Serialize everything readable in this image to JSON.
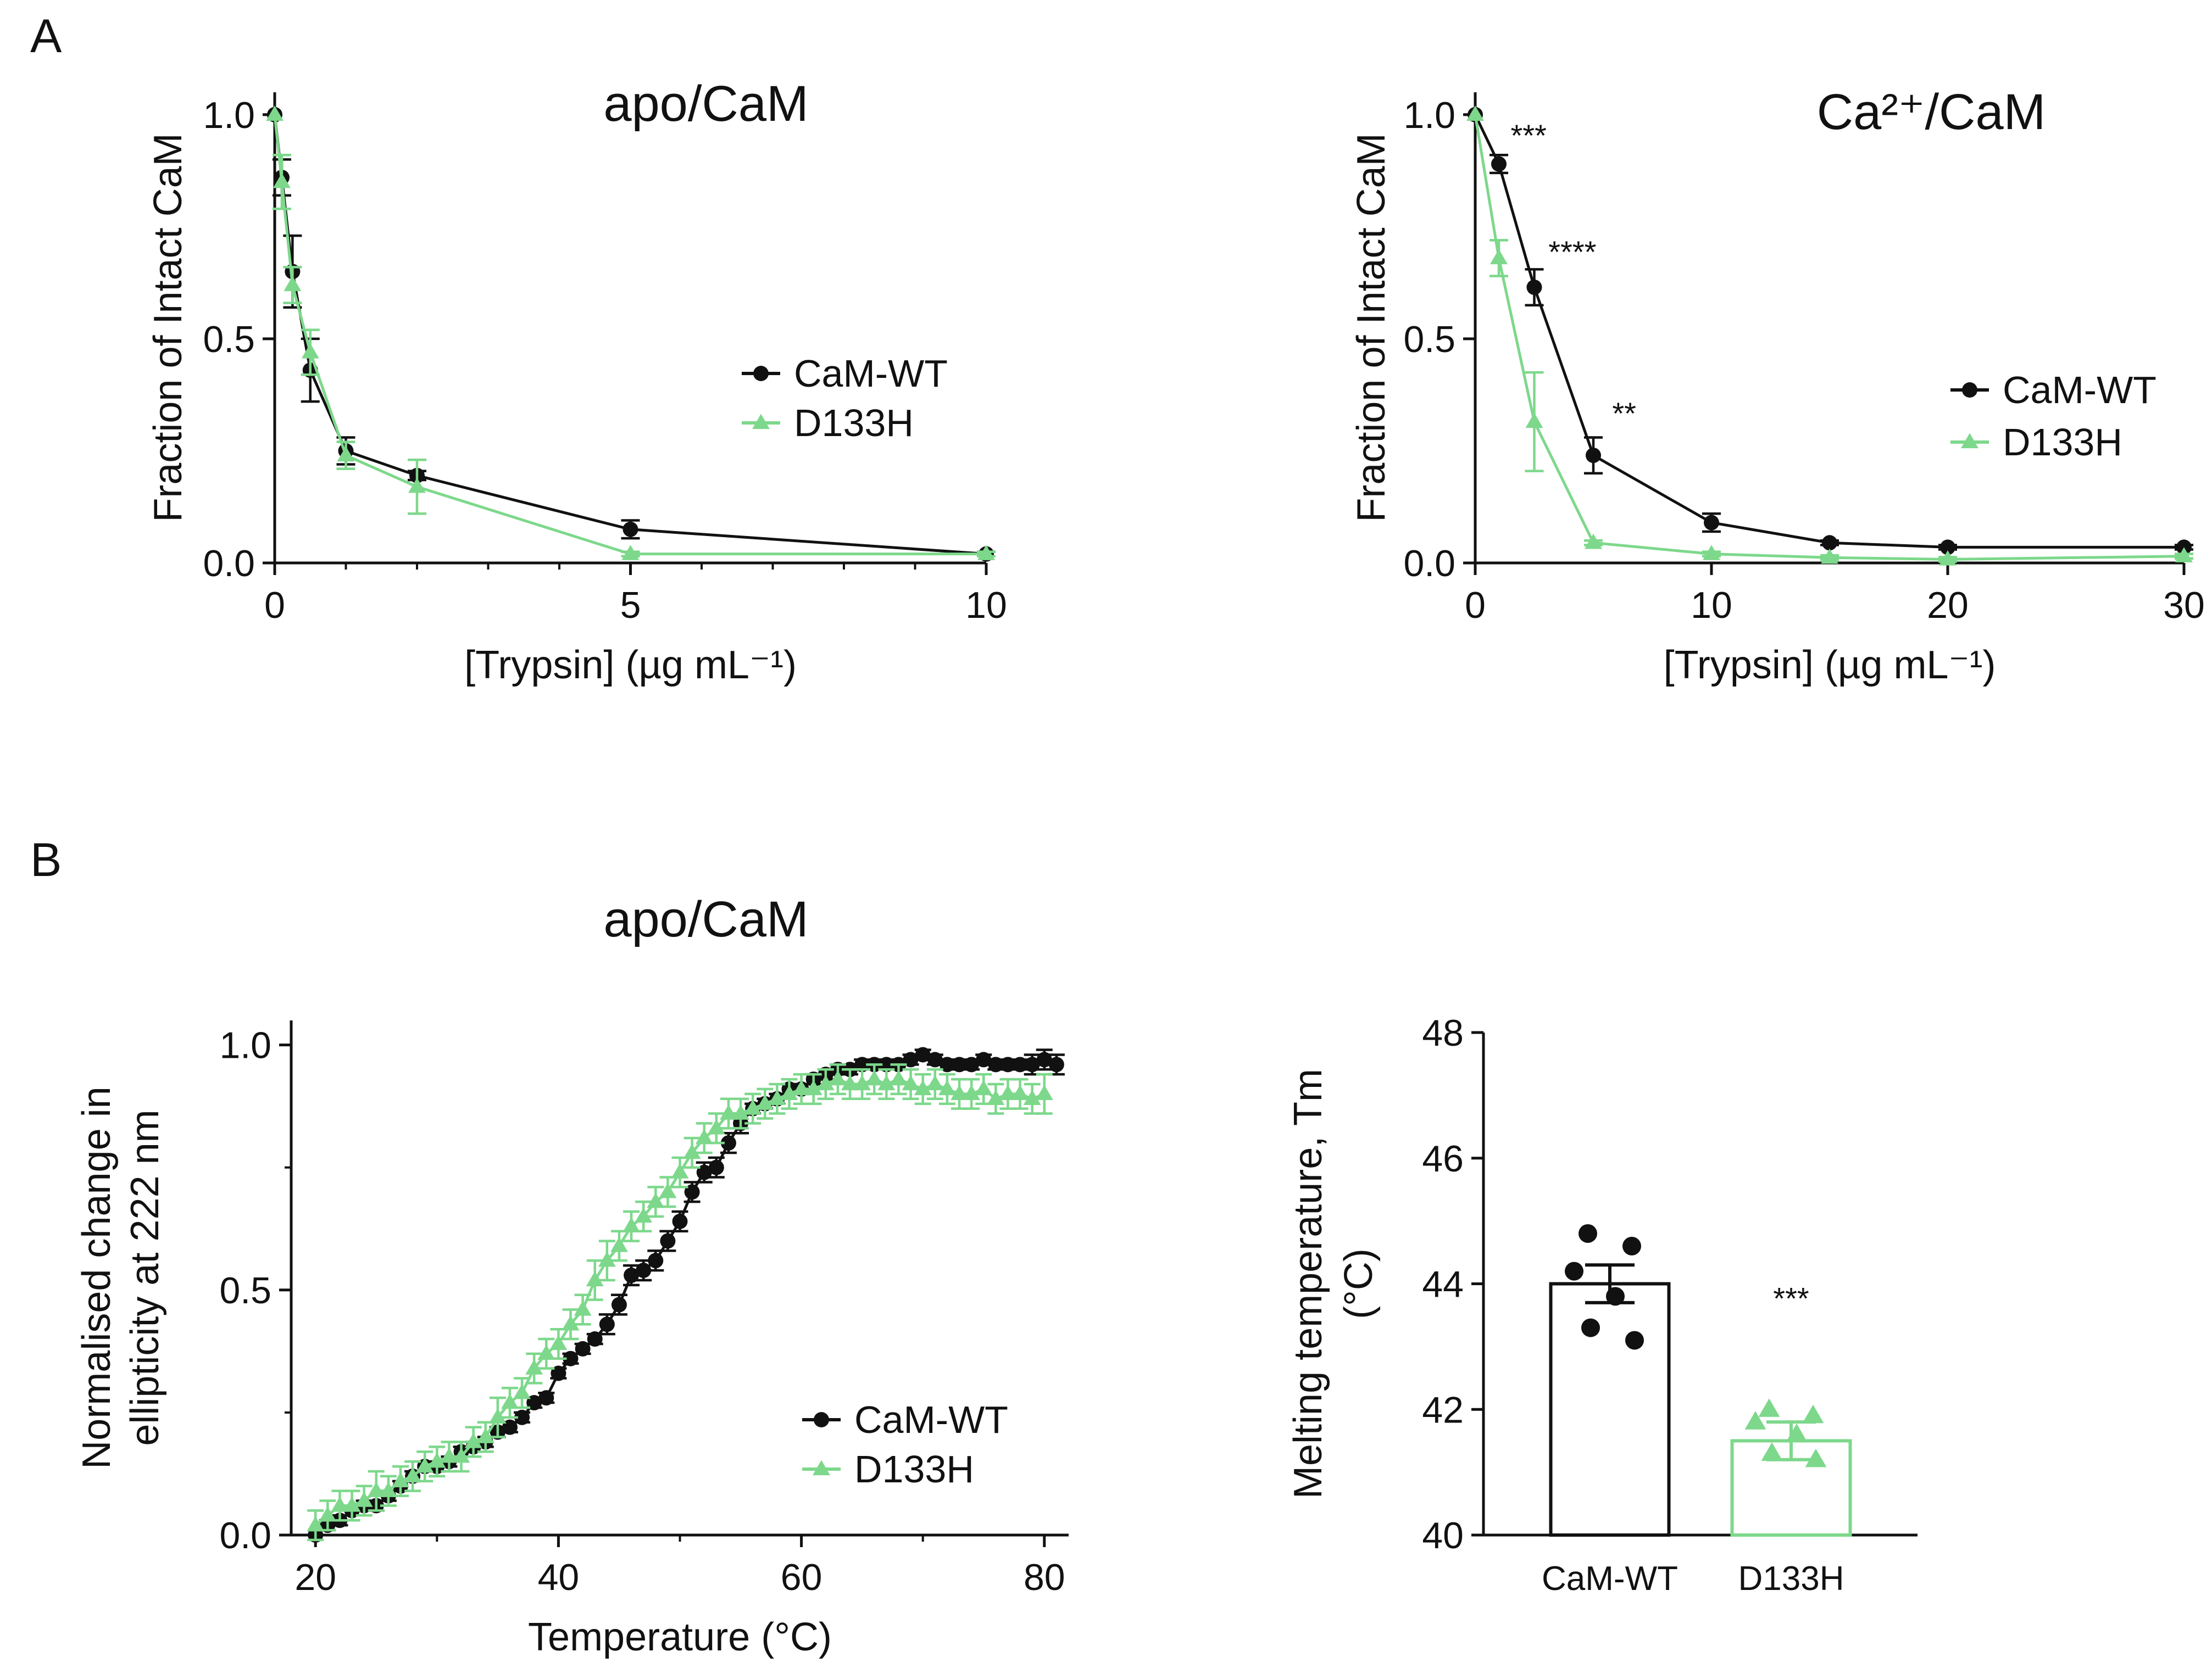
{
  "colors": {
    "wt": "#111111",
    "mut": "#7dd88b"
  },
  "panel_labels": [
    "A",
    "B"
  ],
  "chart_data": [
    {
      "id": "a_left",
      "type": "line",
      "title": "apo/CaM",
      "xlabel": "[Trypsin] (µg mL⁻¹)",
      "ylabel": "Fraction of Intact CaM",
      "xlim": [
        0,
        10
      ],
      "ylim": [
        0,
        1.05
      ],
      "xticks": [
        0,
        5,
        10
      ],
      "yticks": [
        0,
        0.5,
        1.0
      ],
      "ytick_labels": [
        "0.0",
        "0.5",
        "1.0"
      ],
      "legend": "right",
      "series": [
        {
          "name": "CaM-WT",
          "marker": "circle",
          "x": [
            0,
            0.1,
            0.25,
            0.5,
            1,
            2,
            5,
            10
          ],
          "y": [
            1.0,
            0.86,
            0.65,
            0.43,
            0.25,
            0.195,
            0.075,
            0.02
          ],
          "err": [
            0,
            0.04,
            0.08,
            0.07,
            0.03,
            0.01,
            0.02,
            0.005
          ]
        },
        {
          "name": "D133H",
          "marker": "triangle",
          "x": [
            0,
            0.1,
            0.25,
            0.5,
            1,
            2,
            5,
            10
          ],
          "y": [
            1.0,
            0.85,
            0.62,
            0.47,
            0.24,
            0.17,
            0.02,
            0.02
          ],
          "err": [
            0,
            0.06,
            0.04,
            0.05,
            0.03,
            0.06,
            0.005,
            0.005
          ]
        }
      ],
      "annotations": []
    },
    {
      "id": "a_right",
      "type": "line",
      "title": "Ca²⁺/CaM",
      "xlabel": "[Trypsin] (µg mL⁻¹)",
      "ylabel": "Fraction of Intact CaM",
      "xlim": [
        0,
        30
      ],
      "ylim": [
        0,
        1.05
      ],
      "xticks": [
        0,
        10,
        20,
        30
      ],
      "yticks": [
        0,
        0.5,
        1.0
      ],
      "ytick_labels": [
        "0.0",
        "0.5",
        "1.0"
      ],
      "legend": "right",
      "series": [
        {
          "name": "CaM-WT",
          "marker": "circle",
          "x": [
            0,
            1,
            2.5,
            5,
            10,
            15,
            20,
            30
          ],
          "y": [
            1.0,
            0.89,
            0.615,
            0.24,
            0.09,
            0.045,
            0.035,
            0.035
          ],
          "err": [
            0,
            0.02,
            0.04,
            0.04,
            0.02,
            0.005,
            0.005,
            0.005
          ]
        },
        {
          "name": "D133H",
          "marker": "triangle",
          "x": [
            0,
            1,
            2.5,
            5,
            10,
            15,
            20,
            30
          ],
          "y": [
            1.0,
            0.68,
            0.315,
            0.045,
            0.02,
            0.012,
            0.008,
            0.015
          ],
          "err": [
            0,
            0.04,
            0.11,
            0.005,
            0.005,
            0.005,
            0.005,
            0.005
          ]
        }
      ],
      "annotations": [
        {
          "text": "***",
          "x": 1.5,
          "y": 0.93
        },
        {
          "text": "****",
          "x": 3.1,
          "y": 0.67
        },
        {
          "text": "**",
          "x": 5.8,
          "y": 0.31
        }
      ]
    },
    {
      "id": "b_left",
      "type": "scatter",
      "title": "apo/CaM",
      "xlabel": "Temperature (°C)",
      "ylabel": "Normalised change in ellipticity at 222 nm",
      "ylabel_lines": [
        "Normalised change in",
        "ellipticity at 222 nm"
      ],
      "xlim": [
        18,
        82
      ],
      "ylim": [
        0,
        1.05
      ],
      "xticks": [
        20,
        40,
        60,
        80
      ],
      "yticks": [
        0,
        0.5,
        1.0
      ],
      "ytick_labels": [
        "0.0",
        "0.5",
        "1.0"
      ],
      "legend": "bottom-right",
      "series": [
        {
          "name": "CaM-WT",
          "marker": "circle",
          "x": [
            20,
            21,
            22,
            23,
            24,
            25,
            26,
            27,
            28,
            29,
            30,
            31,
            32,
            33,
            34,
            35,
            36,
            37,
            38,
            39,
            40,
            41,
            42,
            43,
            44,
            45,
            46,
            47,
            48,
            49,
            50,
            51,
            52,
            53,
            54,
            55,
            56,
            57,
            58,
            59,
            60,
            61,
            62,
            63,
            64,
            65,
            66,
            67,
            68,
            69,
            70,
            71,
            72,
            73,
            74,
            75,
            76,
            77,
            78,
            79,
            80,
            81
          ],
          "y": [
            0.0,
            0.02,
            0.03,
            0.05,
            0.06,
            0.06,
            0.08,
            0.1,
            0.12,
            0.14,
            0.14,
            0.15,
            0.17,
            0.18,
            0.19,
            0.21,
            0.22,
            0.24,
            0.27,
            0.28,
            0.33,
            0.36,
            0.38,
            0.4,
            0.43,
            0.47,
            0.53,
            0.54,
            0.56,
            0.6,
            0.64,
            0.7,
            0.74,
            0.75,
            0.8,
            0.84,
            0.87,
            0.88,
            0.89,
            0.91,
            0.91,
            0.93,
            0.94,
            0.95,
            0.95,
            0.96,
            0.96,
            0.96,
            0.96,
            0.97,
            0.98,
            0.97,
            0.96,
            0.96,
            0.96,
            0.97,
            0.96,
            0.96,
            0.96,
            0.96,
            0.97,
            0.96
          ],
          "err": [
            0,
            0.01,
            0.01,
            0.01,
            0.01,
            0.01,
            0.01,
            0.01,
            0.01,
            0.01,
            0.01,
            0.01,
            0.01,
            0.01,
            0.01,
            0.01,
            0.01,
            0.01,
            0.01,
            0.01,
            0.01,
            0.01,
            0.01,
            0.01,
            0.02,
            0.02,
            0.02,
            0.02,
            0.02,
            0.02,
            0.02,
            0.02,
            0.02,
            0.02,
            0.02,
            0.02,
            0.01,
            0.01,
            0.01,
            0.01,
            0.01,
            0.01,
            0.01,
            0.01,
            0.01,
            0.01,
            0.01,
            0.01,
            0.01,
            0.01,
            0.01,
            0.01,
            0.01,
            0.01,
            0.01,
            0.01,
            0.01,
            0.01,
            0.01,
            0.02,
            0.02,
            0.02
          ]
        },
        {
          "name": "D133H",
          "marker": "triangle",
          "x": [
            20,
            21,
            22,
            23,
            24,
            25,
            26,
            27,
            28,
            29,
            30,
            31,
            32,
            33,
            34,
            35,
            36,
            37,
            38,
            39,
            40,
            41,
            42,
            43,
            44,
            45,
            46,
            47,
            48,
            49,
            50,
            51,
            52,
            53,
            54,
            55,
            56,
            57,
            58,
            59,
            60,
            61,
            62,
            63,
            64,
            65,
            66,
            67,
            68,
            69,
            70,
            71,
            72,
            73,
            74,
            75,
            76,
            77,
            78,
            79,
            80
          ],
          "y": [
            0.02,
            0.04,
            0.06,
            0.06,
            0.07,
            0.09,
            0.09,
            0.11,
            0.12,
            0.14,
            0.15,
            0.16,
            0.16,
            0.19,
            0.2,
            0.24,
            0.27,
            0.29,
            0.34,
            0.37,
            0.39,
            0.43,
            0.46,
            0.52,
            0.56,
            0.59,
            0.63,
            0.65,
            0.68,
            0.7,
            0.74,
            0.78,
            0.81,
            0.83,
            0.86,
            0.86,
            0.87,
            0.88,
            0.89,
            0.9,
            0.91,
            0.91,
            0.92,
            0.93,
            0.92,
            0.92,
            0.93,
            0.92,
            0.93,
            0.92,
            0.91,
            0.92,
            0.91,
            0.9,
            0.9,
            0.91,
            0.89,
            0.9,
            0.9,
            0.89,
            0.9
          ],
          "err": [
            0.03,
            0.03,
            0.03,
            0.03,
            0.03,
            0.04,
            0.03,
            0.03,
            0.03,
            0.03,
            0.03,
            0.03,
            0.03,
            0.03,
            0.03,
            0.04,
            0.03,
            0.03,
            0.03,
            0.03,
            0.03,
            0.03,
            0.03,
            0.04,
            0.04,
            0.03,
            0.03,
            0.03,
            0.03,
            0.03,
            0.03,
            0.03,
            0.03,
            0.03,
            0.03,
            0.03,
            0.03,
            0.03,
            0.03,
            0.03,
            0.03,
            0.03,
            0.03,
            0.03,
            0.03,
            0.03,
            0.03,
            0.03,
            0.03,
            0.03,
            0.03,
            0.03,
            0.03,
            0.03,
            0.03,
            0.03,
            0.03,
            0.03,
            0.03,
            0.03,
            0.04
          ]
        }
      ],
      "annotations": []
    },
    {
      "id": "b_right",
      "type": "bar",
      "ylabel": "Melting temperature, Tm (°C)",
      "ylabel_lines": [
        "Melting temperature, Tm",
        "(°C)"
      ],
      "categories": [
        "CaM-WT",
        "D133H"
      ],
      "values": [
        44.0,
        41.5
      ],
      "err": [
        0.3,
        0.3
      ],
      "points": [
        [
          44.8,
          44.6,
          44.2,
          43.8,
          43.3,
          43.1
        ],
        [
          42.0,
          41.9,
          41.8,
          41.6,
          41.3,
          41.2
        ]
      ],
      "ylim": [
        40,
        48
      ],
      "yticks": [
        40,
        42,
        44,
        46,
        48
      ],
      "annotations": [
        {
          "text": "***",
          "category": 1,
          "y": 43.6
        }
      ]
    }
  ]
}
